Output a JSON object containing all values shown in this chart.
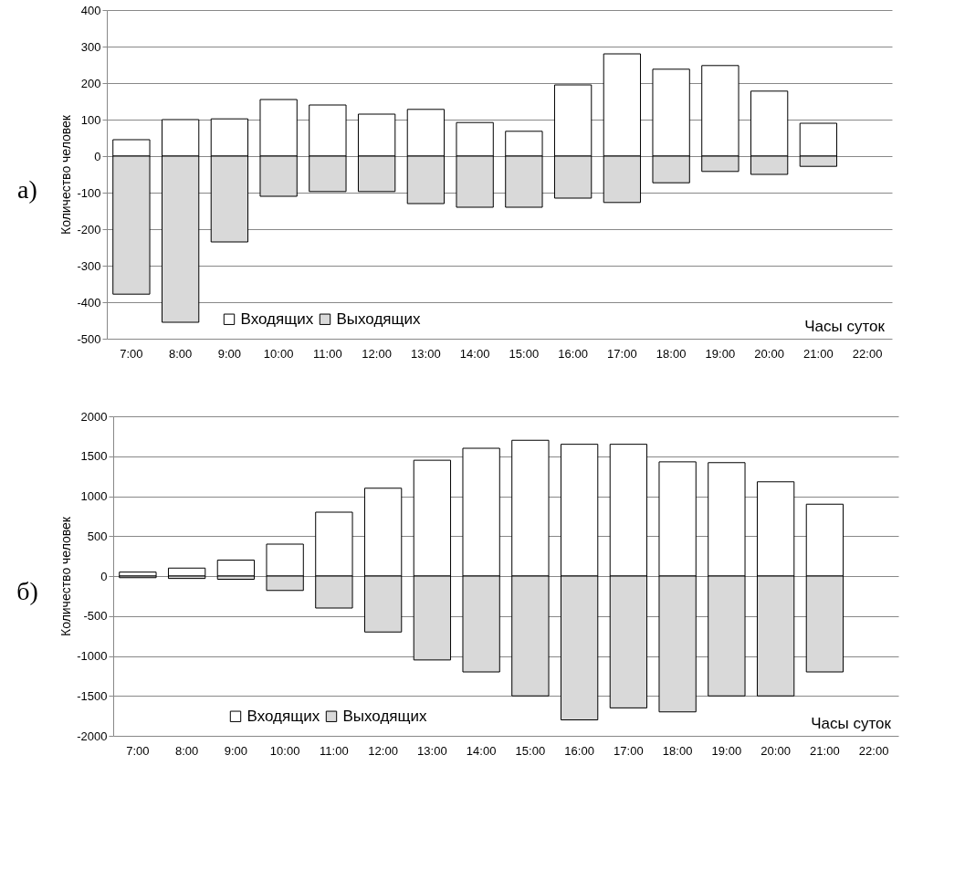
{
  "chart_data": [
    {
      "type": "bar",
      "stacked": true,
      "annotations": [
        "а)"
      ],
      "ylabel": "Количество человек",
      "xlabel": "Часы суток",
      "categories": [
        "7:00",
        "8:00",
        "9:00",
        "10:00",
        "11:00",
        "12:00",
        "13:00",
        "14:00",
        "15:00",
        "16:00",
        "17:00",
        "18:00",
        "19:00",
        "20:00",
        "21:00",
        "22:00"
      ],
      "series": [
        {
          "name": "Входящих",
          "color": "#ffffff",
          "values": [
            45,
            100,
            102,
            155,
            140,
            115,
            128,
            92,
            68,
            195,
            280,
            238,
            248,
            178,
            90,
            null
          ]
        },
        {
          "name": "Выходящих",
          "color": "#d9d9d9",
          "values": [
            -378,
            -455,
            -235,
            -110,
            -97,
            -97,
            -130,
            -140,
            -140,
            -115,
            -127,
            -73,
            -42,
            -50,
            -28,
            null
          ]
        }
      ],
      "ylim": [
        -500,
        400
      ],
      "yticks": [
        -500,
        -400,
        -300,
        -200,
        -100,
        0,
        100,
        200,
        300,
        400
      ],
      "grid": "y",
      "legend": "bottom left"
    },
    {
      "type": "bar",
      "stacked": true,
      "annotations": [
        "б)"
      ],
      "ylabel": "Количество человек",
      "xlabel": "Часы суток",
      "categories": [
        "7:00",
        "8:00",
        "9:00",
        "10:00",
        "11:00",
        "12:00",
        "13:00",
        "14:00",
        "15:00",
        "16:00",
        "17:00",
        "18:00",
        "19:00",
        "20:00",
        "21:00",
        "22:00"
      ],
      "series": [
        {
          "name": "Входящих",
          "color": "#ffffff",
          "values": [
            50,
            100,
            200,
            400,
            800,
            1100,
            1450,
            1600,
            1700,
            1650,
            1650,
            1430,
            1420,
            1180,
            900,
            null
          ]
        },
        {
          "name": "Выходящих",
          "color": "#d9d9d9",
          "values": [
            -20,
            -30,
            -40,
            -180,
            -400,
            -700,
            -1050,
            -1200,
            -1500,
            -1800,
            -1650,
            -1700,
            -1500,
            -1500,
            -1200,
            null
          ]
        }
      ],
      "ylim": [
        -2000,
        2000
      ],
      "yticks": [
        -2000,
        -1500,
        -1000,
        -500,
        0,
        500,
        1000,
        1500,
        2000
      ],
      "grid": "y",
      "legend": "bottom left"
    }
  ]
}
